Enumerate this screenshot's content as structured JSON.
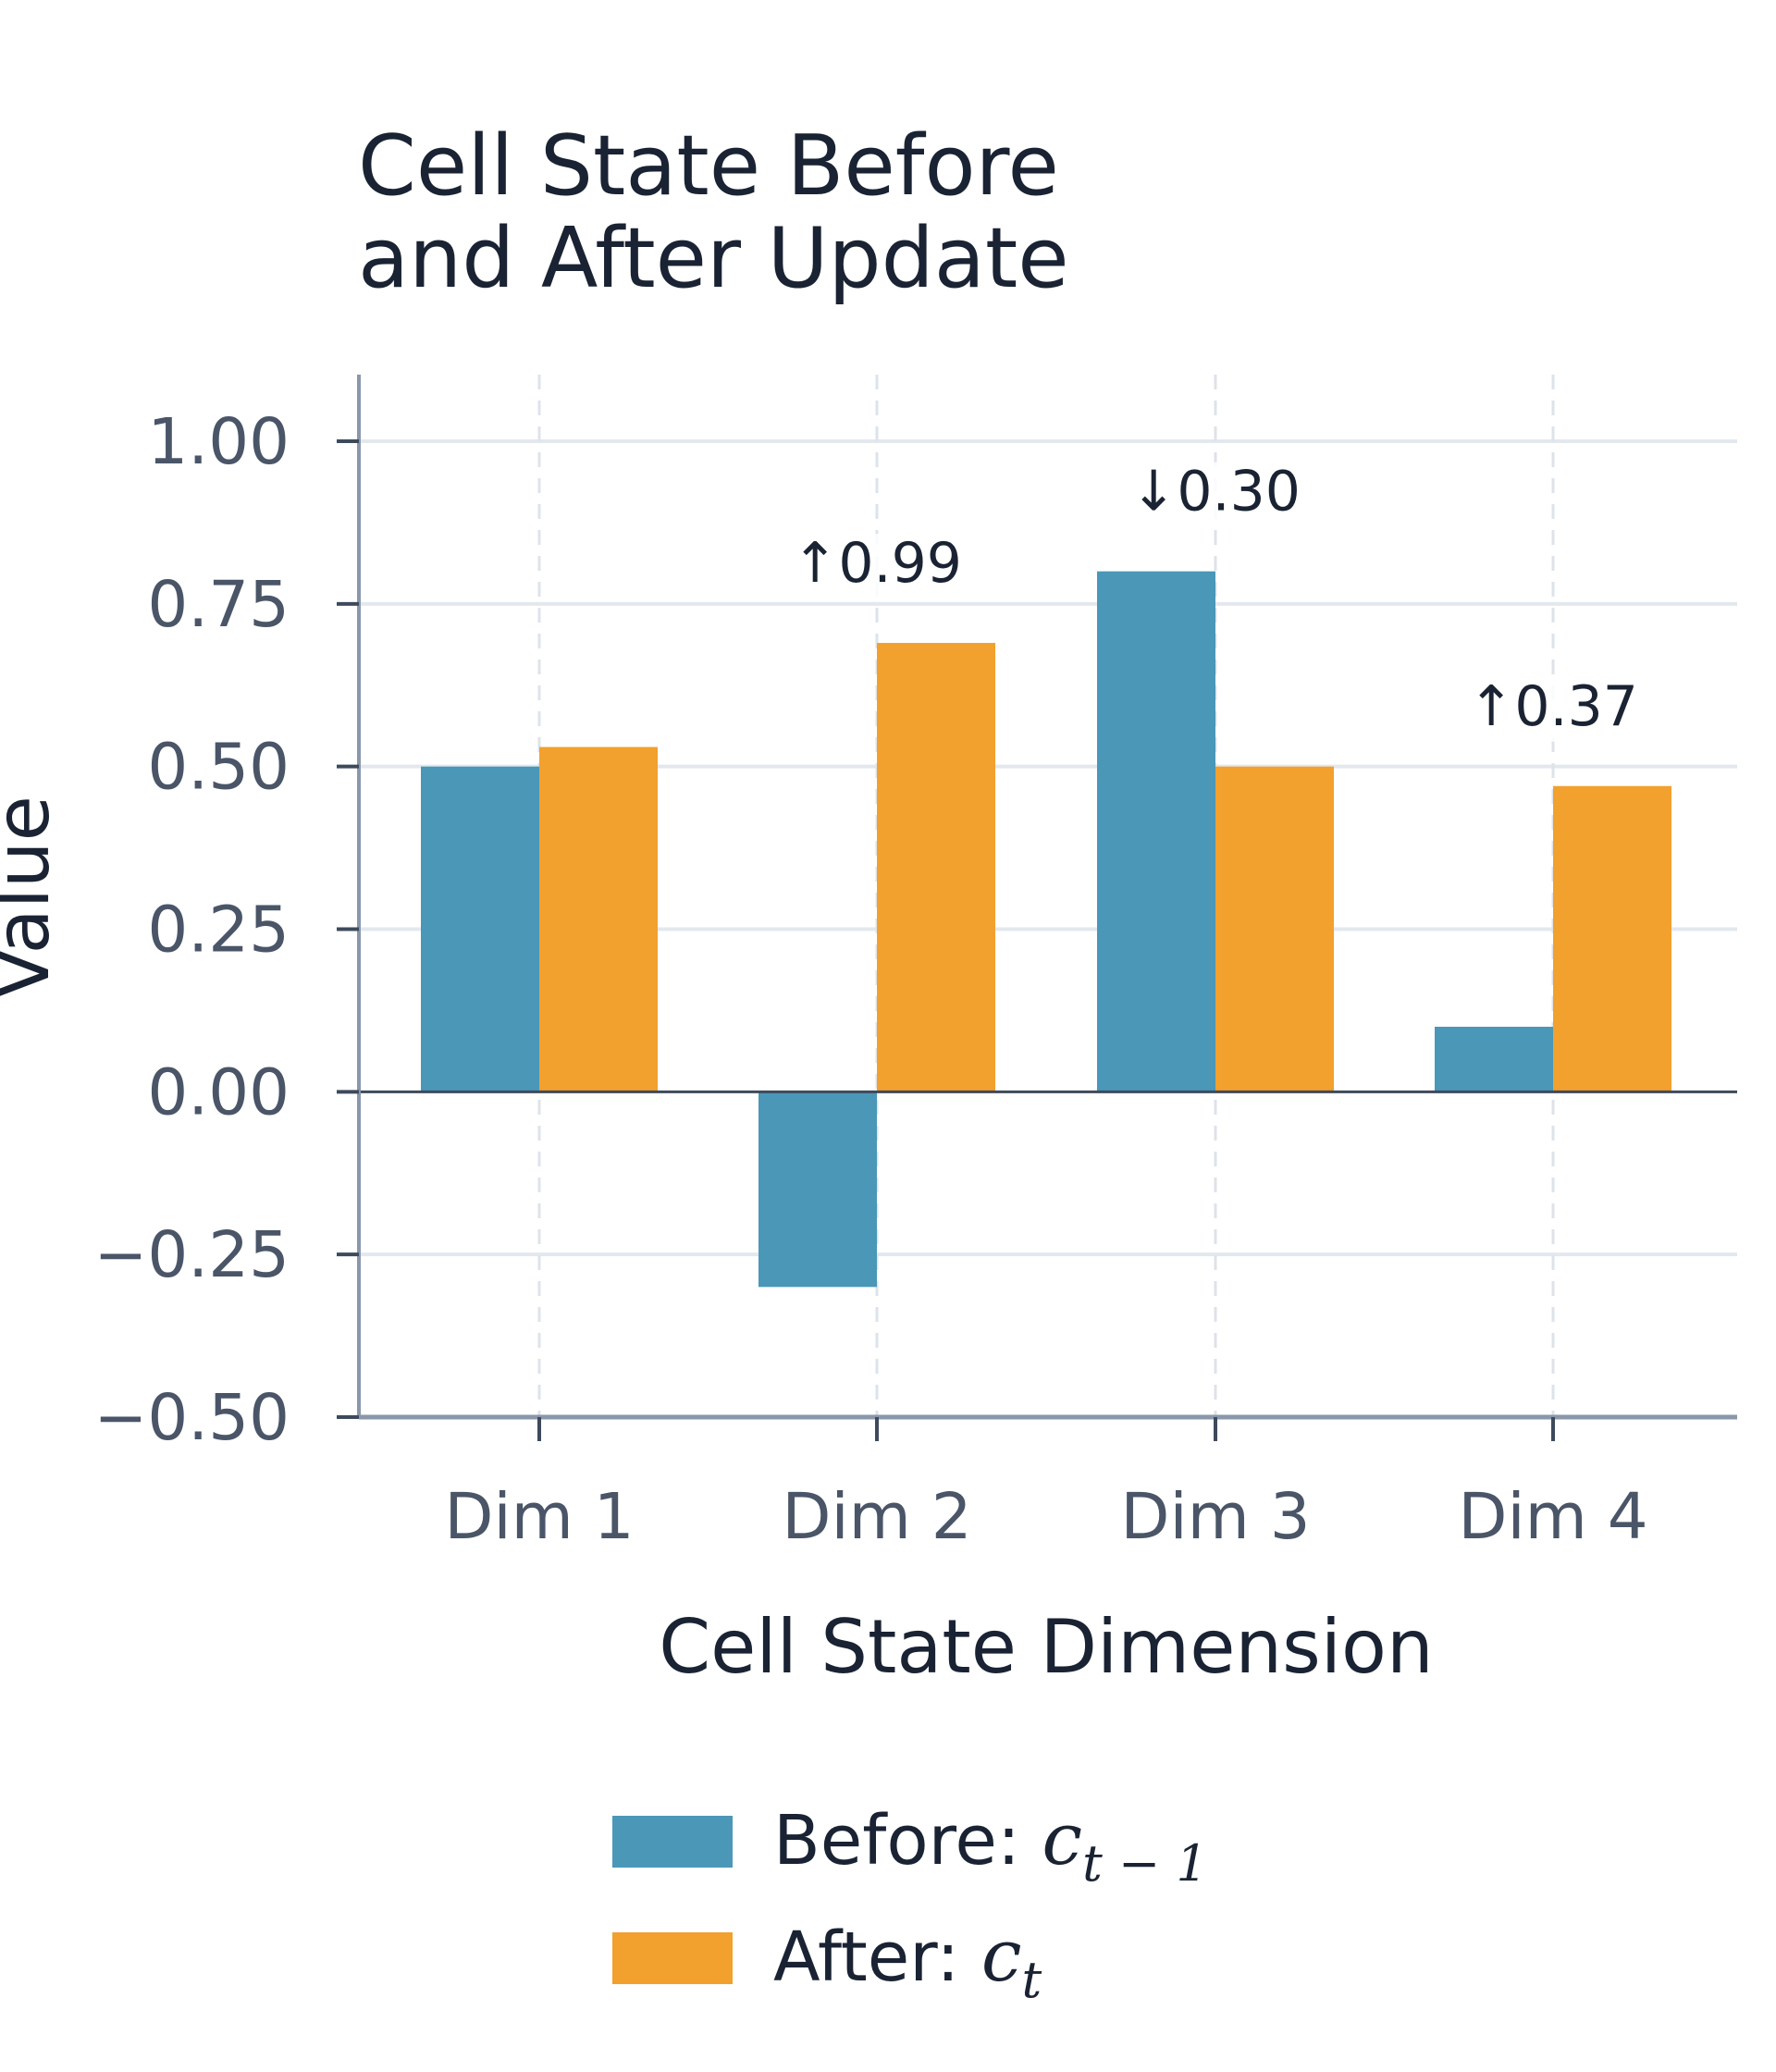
{
  "chart_data": {
    "type": "bar",
    "title": [
      "Cell State Before",
      "and After Update"
    ],
    "xlabel": "Cell State Dimension",
    "ylabel": "Value",
    "categories": [
      "Dim 1",
      "Dim 2",
      "Dim 3",
      "Dim 4"
    ],
    "ylim": [
      -0.5,
      1.1
    ],
    "yticks": [
      1.0,
      0.75,
      0.5,
      0.25,
      0.0,
      -0.25,
      -0.5
    ],
    "ytick_labels": [
      "1.00",
      "0.75",
      "0.50",
      "0.25",
      "0.00",
      "−0.25",
      "−0.50"
    ],
    "series": [
      {
        "name": "Before: c_{t-1}",
        "legend_prefix": "Before: ",
        "legend_math": "c",
        "legend_sub": "t − 1",
        "color": "#4a97b8",
        "values": [
          0.5,
          -0.3,
          0.8,
          0.1
        ]
      },
      {
        "name": "After: c_t",
        "legend_prefix": "After: ",
        "legend_math": "c",
        "legend_sub": "t",
        "color": "#f2a02e",
        "values": [
          0.53,
          0.69,
          0.5,
          0.47
        ]
      }
    ],
    "annotations": [
      {
        "category": "Dim 2",
        "text": "↑0.99"
      },
      {
        "category": "Dim 3",
        "text": "↓0.30"
      },
      {
        "category": "Dim 4",
        "text": "↑0.37"
      }
    ],
    "grid": true,
    "legend_position": "bottom"
  }
}
